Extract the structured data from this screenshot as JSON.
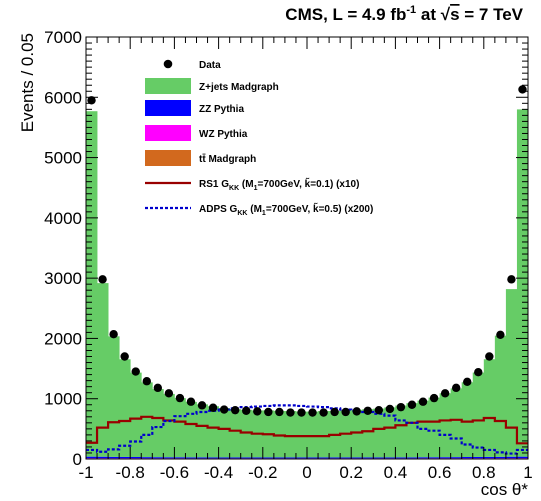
{
  "chart_data": {
    "type": "bar",
    "title": {
      "main": "CMS, L = 4.9 fb",
      "exp": "-1",
      "mid": " at ",
      "sqrt_arg": "s",
      "tail": " = 7 TeV"
    },
    "xlabel": "cos θ*",
    "ylabel": "Events / 0.05",
    "xlim": [
      -1,
      1
    ],
    "ylim": [
      0,
      7000
    ],
    "x_ticks": [
      "-1",
      "-0.8",
      "-0.6",
      "-0.4",
      "-0.2",
      "0",
      "0.2",
      "0.4",
      "0.6",
      "0.8",
      "1"
    ],
    "y_ticks": [
      "0",
      "1000",
      "2000",
      "3000",
      "4000",
      "5000",
      "6000",
      "7000"
    ],
    "bin_edges_start": -1,
    "bin_width": 0.05,
    "legend_position": "top-left",
    "legend": [
      {
        "label": "Data",
        "kind": "marker"
      },
      {
        "label": "Z+jets Madgraph",
        "kind": "fill",
        "color": "#66cc66"
      },
      {
        "label": "ZZ Pythia",
        "kind": "fill",
        "color": "#0000ff"
      },
      {
        "label": "WZ Pythia",
        "kind": "fill",
        "color": "#ff00ff"
      },
      {
        "label": "tt̄ Madgraph",
        "kind": "fill",
        "color": "#d2691e"
      },
      {
        "label": "RS1 G_KK (M_1=700GeV, k̃=0.1) (x10)",
        "kind": "line",
        "color": "#990000",
        "parts": [
          "RS1 G",
          "KK",
          " (M",
          "1",
          "=700GeV, k̃=0.1) (x10)"
        ]
      },
      {
        "label": "ADPS G_KK (M_1=700GeV, k̃=0.5) (x200)",
        "kind": "dashed",
        "color": "#0000cc",
        "parts": [
          "ADPS G",
          "KK",
          " (M",
          "1",
          "=700GeV, k̃=0.5) (x200)"
        ]
      }
    ],
    "series": [
      {
        "name": "Data",
        "values": [
          5950,
          2980,
          2070,
          1700,
          1450,
          1290,
          1180,
          1090,
          1010,
          950,
          890,
          850,
          820,
          810,
          800,
          790,
          780,
          780,
          770,
          770,
          770,
          770,
          780,
          780,
          790,
          800,
          810,
          830,
          860,
          900,
          950,
          1010,
          1090,
          1180,
          1280,
          1440,
          1700,
          2060,
          2980,
          6130
        ]
      },
      {
        "name": "Z+jets Madgraph",
        "values": [
          5730,
          2880,
          2000,
          1620,
          1400,
          1240,
          1130,
          1050,
          980,
          920,
          880,
          850,
          820,
          800,
          790,
          780,
          780,
          770,
          770,
          760,
          760,
          770,
          770,
          780,
          790,
          800,
          810,
          830,
          860,
          900,
          940,
          990,
          1060,
          1140,
          1240,
          1400,
          1620,
          2010,
          2780,
          5760
        ]
      },
      {
        "name": "ZZ Pythia",
        "values": [
          25,
          24,
          22,
          21,
          20,
          19,
          18,
          17,
          17,
          16,
          16,
          15,
          15,
          15,
          15,
          15,
          15,
          15,
          15,
          15,
          15,
          15,
          15,
          15,
          15,
          15,
          15,
          15,
          16,
          16,
          17,
          17,
          18,
          19,
          20,
          21,
          22,
          23,
          24,
          25
        ]
      },
      {
        "name": "WZ Pythia",
        "values": [
          8,
          8,
          7,
          7,
          7,
          6,
          6,
          6,
          6,
          5,
          5,
          5,
          5,
          5,
          5,
          5,
          5,
          5,
          5,
          5,
          5,
          5,
          5,
          5,
          5,
          5,
          5,
          5,
          5,
          5,
          6,
          6,
          6,
          6,
          7,
          7,
          7,
          7,
          8,
          8
        ]
      },
      {
        "name": "tt̄ Madgraph",
        "values": [
          6,
          6,
          6,
          6,
          6,
          6,
          6,
          6,
          6,
          6,
          6,
          6,
          6,
          6,
          6,
          6,
          6,
          6,
          6,
          6,
          6,
          6,
          6,
          6,
          6,
          6,
          6,
          6,
          6,
          6,
          6,
          6,
          6,
          6,
          6,
          6,
          6,
          6,
          6,
          6
        ]
      },
      {
        "name": "RS1 G_KK (M_1=700GeV, k̃=0.1) (x10)",
        "values": [
          270,
          520,
          610,
          630,
          670,
          700,
          680,
          640,
          620,
          580,
          550,
          520,
          500,
          470,
          440,
          420,
          410,
          390,
          380,
          380,
          380,
          380,
          400,
          420,
          440,
          460,
          500,
          520,
          560,
          600,
          620,
          620,
          640,
          650,
          620,
          640,
          680,
          630,
          520,
          260
        ]
      },
      {
        "name": "ADPS G_KK (M_1=700GeV, k̃=0.5) (x200)",
        "values": [
          150,
          120,
          160,
          220,
          290,
          400,
          530,
          630,
          710,
          750,
          780,
          800,
          820,
          840,
          860,
          870,
          880,
          890,
          890,
          880,
          870,
          860,
          840,
          820,
          800,
          780,
          750,
          720,
          640,
          600,
          500,
          470,
          400,
          340,
          240,
          190,
          150,
          110,
          90,
          150
        ]
      }
    ]
  }
}
